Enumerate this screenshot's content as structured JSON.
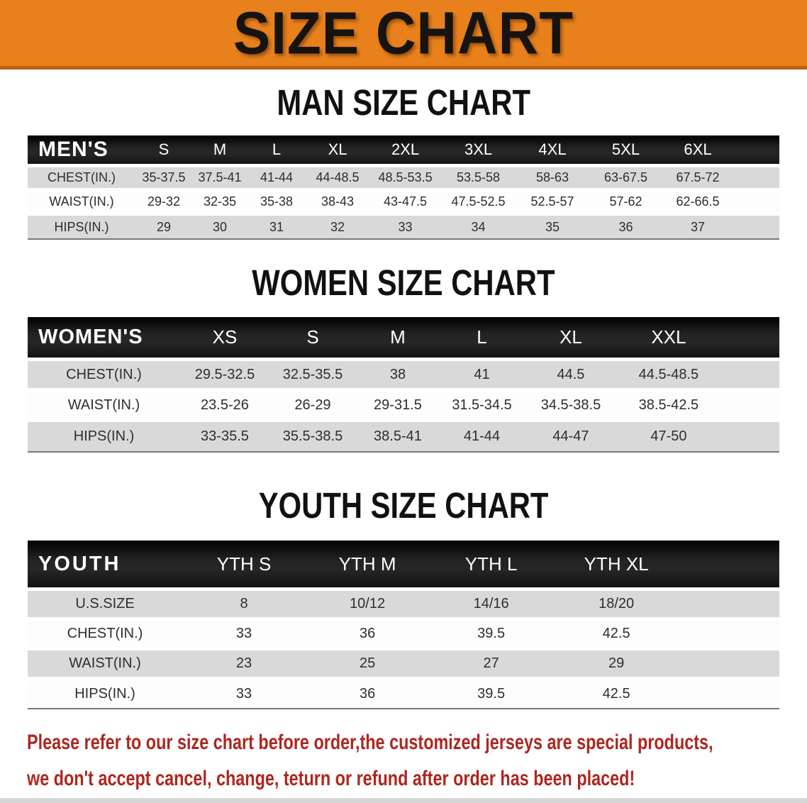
{
  "banner": {
    "title": "SIZE CHART"
  },
  "colors": {
    "banner_orange": "#e8811c",
    "banner_edge": "#c0600f",
    "bar_black": "#1b1b1b",
    "row_stripe": "#d9d9d9",
    "disclaimer_red": "#ae261f"
  },
  "sections": [
    {
      "heading": "MAN SIZE CHART",
      "header_label": "MEN'S",
      "columns": [
        "S",
        "M",
        "L",
        "XL",
        "2XL",
        "3XL",
        "4XL",
        "5XL",
        "6XL"
      ],
      "rows": [
        {
          "label": "CHEST(IN.)",
          "values": [
            "35-37.5",
            "37.5-41",
            "41-44",
            "44-48.5",
            "48.5-53.5",
            "53.5-58",
            "58-63",
            "63-67.5",
            "67.5-72"
          ]
        },
        {
          "label": "WAIST(IN.)",
          "values": [
            "29-32",
            "32-35",
            "35-38",
            "38-43",
            "43-47.5",
            "47.5-52.5",
            "52.5-57",
            "57-62",
            "62-66.5"
          ]
        },
        {
          "label": "HIPS(IN.)",
          "values": [
            "29",
            "30",
            "31",
            "32",
            "33",
            "34",
            "35",
            "36",
            "37"
          ]
        }
      ]
    },
    {
      "heading": "WOMEN SIZE CHART",
      "header_label": "WOMEN'S",
      "columns": [
        "XS",
        "S",
        "M",
        "L",
        "XL",
        "XXL"
      ],
      "rows": [
        {
          "label": "CHEST(IN.)",
          "values": [
            "29.5-32.5",
            "32.5-35.5",
            "38",
            "41",
            "44.5",
            "44.5-48.5"
          ]
        },
        {
          "label": "WAIST(IN.)",
          "values": [
            "23.5-26",
            "26-29",
            "29-31.5",
            "31.5-34.5",
            "34.5-38.5",
            "38.5-42.5"
          ]
        },
        {
          "label": "HIPS(IN.)",
          "values": [
            "33-35.5",
            "35.5-38.5",
            "38.5-41",
            "41-44",
            "44-47",
            "47-50"
          ]
        }
      ]
    },
    {
      "heading": "YOUTH SIZE CHART",
      "header_label": "YOUTH",
      "columns": [
        "YTH S",
        "YTH M",
        "YTH L",
        "YTH XL"
      ],
      "rows": [
        {
          "label": "U.S.SIZE",
          "values": [
            "8",
            "10/12",
            "14/16",
            "18/20"
          ]
        },
        {
          "label": "CHEST(IN.)",
          "values": [
            "33",
            "36",
            "39.5",
            "42.5"
          ]
        },
        {
          "label": "WAIST(IN.)",
          "values": [
            "23",
            "25",
            "27",
            "29"
          ]
        },
        {
          "label": "HIPS(IN.)",
          "values": [
            "33",
            "36",
            "39.5",
            "42.5"
          ]
        }
      ]
    }
  ],
  "disclaimer": {
    "line1": "Please refer to our size chart before order,the customized jerseys are special products,",
    "line2": "we don't accept cancel, change, teturn or refund after order has been placed!"
  }
}
